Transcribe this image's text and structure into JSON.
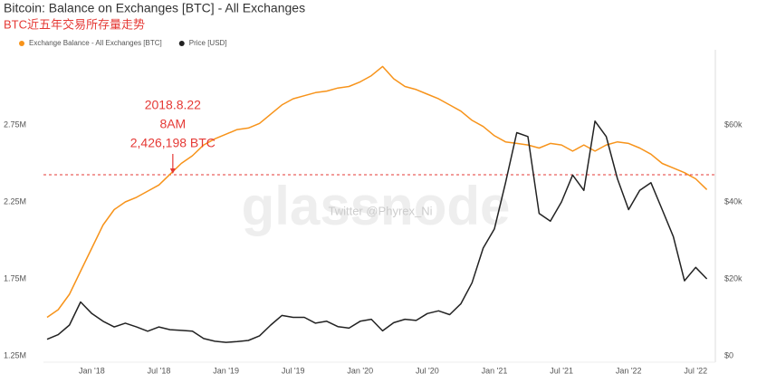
{
  "chart_data": {
    "type": "line",
    "title": "Bitcoin: Balance on Exchanges [BTC] - All Exchanges",
    "subtitle": "BTC近五年交易所存量走势",
    "x": [
      "2017-09",
      "2017-10",
      "2017-11",
      "2017-12",
      "2018-01",
      "2018-02",
      "2018-03",
      "2018-04",
      "2018-05",
      "2018-06",
      "2018-07",
      "2018-08",
      "2018-09",
      "2018-10",
      "2018-11",
      "2018-12",
      "2019-01",
      "2019-02",
      "2019-03",
      "2019-04",
      "2019-05",
      "2019-06",
      "2019-07",
      "2019-08",
      "2019-09",
      "2019-10",
      "2019-11",
      "2019-12",
      "2020-01",
      "2020-02",
      "2020-03",
      "2020-04",
      "2020-05",
      "2020-06",
      "2020-07",
      "2020-08",
      "2020-09",
      "2020-10",
      "2020-11",
      "2020-12",
      "2021-01",
      "2021-02",
      "2021-03",
      "2021-04",
      "2021-05",
      "2021-06",
      "2021-07",
      "2021-08",
      "2021-09",
      "2021-10",
      "2021-11",
      "2021-12",
      "2022-01",
      "2022-02",
      "2022-03",
      "2022-04",
      "2022-05",
      "2022-06",
      "2022-07",
      "2022-08"
    ],
    "series": [
      {
        "name": "Exchange Balance - All Exchanges [BTC]",
        "color": "#f7931a",
        "values": [
          1500000,
          1550000,
          1650000,
          1800000,
          1950000,
          2100000,
          2200000,
          2250000,
          2280000,
          2320000,
          2360000,
          2430000,
          2500000,
          2550000,
          2620000,
          2660000,
          2690000,
          2720000,
          2730000,
          2760000,
          2820000,
          2880000,
          2920000,
          2940000,
          2960000,
          2970000,
          2990000,
          3000000,
          3030000,
          3070000,
          3130000,
          3050000,
          3000000,
          2980000,
          2950000,
          2920000,
          2880000,
          2840000,
          2780000,
          2740000,
          2680000,
          2640000,
          2630000,
          2620000,
          2600000,
          2630000,
          2620000,
          2580000,
          2620000,
          2580000,
          2620000,
          2640000,
          2630000,
          2600000,
          2560000,
          2500000,
          2470000,
          2440000,
          2400000,
          2330000
        ]
      },
      {
        "name": "Price [USD]",
        "color": "#222222",
        "axis": "y2",
        "values": [
          4300,
          5500,
          8000,
          14000,
          11000,
          9000,
          7500,
          8500,
          7500,
          6400,
          7500,
          6800,
          6600,
          6400,
          4500,
          3800,
          3500,
          3700,
          4000,
          5200,
          8000,
          10500,
          10000,
          10000,
          8500,
          9000,
          7600,
          7200,
          9000,
          9500,
          6500,
          8600,
          9500,
          9200,
          11000,
          11700,
          10700,
          13500,
          19000,
          28000,
          33000,
          45000,
          58000,
          57000,
          37000,
          35000,
          40000,
          47000,
          43000,
          61000,
          57000,
          46000,
          38000,
          43000,
          45000,
          38000,
          31000,
          19500,
          23000,
          20000
        ]
      }
    ],
    "ylim": [
      1250000,
      3250000
    ],
    "yticks": [
      {
        "value": 1250000,
        "label": "1.25M"
      },
      {
        "value": 1750000,
        "label": "1.75M"
      },
      {
        "value": 2250000,
        "label": "2.25M"
      },
      {
        "value": 2750000,
        "label": "2.75M"
      }
    ],
    "y2lim": [
      0,
      80000
    ],
    "y2ticks": [
      {
        "value": 0,
        "label": "$0"
      },
      {
        "value": 20000,
        "label": "$20k"
      },
      {
        "value": 40000,
        "label": "$40k"
      },
      {
        "value": 60000,
        "label": "$60k"
      }
    ],
    "xticks": [
      {
        "value": "2018-01",
        "label": "Jan '18"
      },
      {
        "value": "2018-07",
        "label": "Jul '18"
      },
      {
        "value": "2019-01",
        "label": "Jan '19"
      },
      {
        "value": "2019-07",
        "label": "Jul '19"
      },
      {
        "value": "2020-01",
        "label": "Jan '20"
      },
      {
        "value": "2020-07",
        "label": "Jul '20"
      },
      {
        "value": "2021-01",
        "label": "Jan '21"
      },
      {
        "value": "2021-07",
        "label": "Jul '21"
      },
      {
        "value": "2022-01",
        "label": "Jan '22"
      },
      {
        "value": "2022-07",
        "label": "Jul '22"
      }
    ],
    "reference_line": {
      "value": 2426198,
      "color": "#e53935"
    },
    "annotation": {
      "x": "2018-08",
      "lines": [
        "2018.8.22",
        "8AM",
        "2,426,198 BTC"
      ],
      "color": "#e53935"
    },
    "watermark": [
      "glassnode",
      "Twitter @Phyrex_Ni"
    ],
    "grid": false
  }
}
